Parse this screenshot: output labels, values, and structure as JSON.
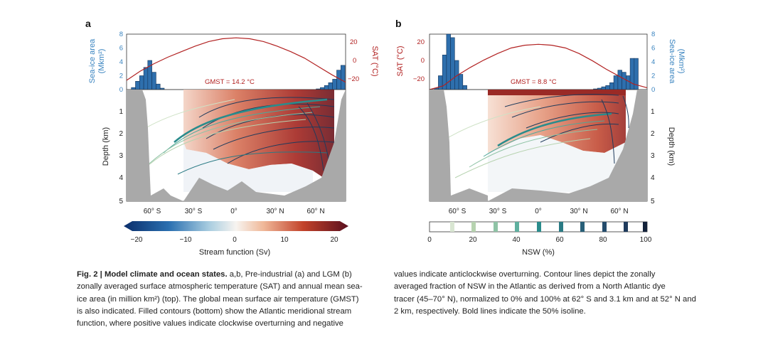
{
  "figure": {
    "caption_label": "Fig. 2 | Model climate and ocean states.",
    "caption_left_bold_ab": "a",
    "caption_left": [
      " a,b, Pre-industrial (a) and LGM (b)",
      "zonally averaged surface atmospheric temperature (SAT) and annual mean sea-",
      "ice area (in million km²) (top). The global mean surface air temperature (GMST)",
      "is also indicated. Filled contours (bottom) show the Atlantic meridional stream",
      "function, where positive values indicate clockwise overturning and negative"
    ],
    "caption_right": [
      "values indicate anticlockwise overturning. Contour lines depict the zonally",
      "averaged fraction of NSW in the Atlantic as derived from a North Atlantic dye",
      "tracer (45–70° N), normalized to 0% and 100% at 62° S and 3.1 km and at 52° N and",
      "2 km, respectively. Bold lines indicate the 50% isoline."
    ]
  },
  "panel_a": {
    "label": "a",
    "seaice_axis_label": [
      "Sea-ice area",
      "(Mkm²)"
    ],
    "seaice_ticks": [
      "8",
      "6",
      "4",
      "2",
      "0"
    ],
    "sat_axis_label": "SAT (°C)",
    "sat_ticks": [
      "20",
      "0",
      "−20"
    ],
    "gmst": "GMST = 14.2 °C",
    "depth_axis_label": "Depth (km)",
    "depth_ticks": [
      "1",
      "2",
      "3",
      "4",
      "5"
    ],
    "lat_ticks": [
      "60° S",
      "30° S",
      "0°",
      "30° N",
      "60° N"
    ]
  },
  "panel_b": {
    "label": "b",
    "seaice_axis_label": [
      "Sea-ice area",
      "(Mkm²)"
    ],
    "seaice_ticks": [
      "8",
      "6",
      "4",
      "2",
      "0"
    ],
    "sat_axis_label": "SAT (°C)",
    "sat_ticks": [
      "20",
      "0",
      "−20"
    ],
    "gmst": "GMST = 8.8 °C",
    "depth_axis_label": "Depth (km)",
    "depth_ticks": [
      "1",
      "2",
      "3",
      "4",
      "5"
    ],
    "lat_ticks": [
      "60° S",
      "30° S",
      "0°",
      "30° N",
      "60° N"
    ]
  },
  "colorbar_stream": {
    "label": "Stream function (Sv)",
    "ticks": [
      "−20",
      "−10",
      "0",
      "10",
      "20"
    ]
  },
  "colorbar_nsw": {
    "label": "NSW (%)",
    "ticks": [
      "0",
      "20",
      "40",
      "60",
      "80",
      "100"
    ]
  },
  "colors": {
    "seaice": "#2e6fad",
    "sat": "#b22222",
    "land": "#a9a9a9",
    "contour_dark": "#1f3b5c",
    "contour_teal": "#2a8c8c",
    "contour_light": "#b7d3b0"
  },
  "chart_data": [
    {
      "type": "bar",
      "panel": "a",
      "series": [
        {
          "name": "Sea-ice area",
          "x": [
            -75,
            -72,
            -69,
            -66,
            -63,
            -60,
            -57,
            -54,
            60,
            63,
            66,
            69,
            72,
            75,
            78
          ],
          "values": [
            0.3,
            1.2,
            2.0,
            3.2,
            4.2,
            2.5,
            0.8,
            0.2,
            0.1,
            0.3,
            0.6,
            1.0,
            1.5,
            2.8,
            3.5
          ]
        }
      ],
      "ylim": [
        0,
        8
      ]
    },
    {
      "type": "line",
      "panel": "a",
      "series": [
        {
          "name": "SAT",
          "x": [
            -80,
            -70,
            -60,
            -50,
            -40,
            -30,
            -20,
            -10,
            0,
            10,
            20,
            30,
            40,
            50,
            60,
            70,
            80
          ],
          "values": [
            -20,
            -10,
            -2,
            5,
            11,
            17,
            22,
            25,
            26,
            25,
            22,
            17,
            11,
            4,
            -5,
            -14,
            -22
          ]
        }
      ],
      "ylim": [
        -30,
        30
      ]
    },
    {
      "type": "bar",
      "panel": "b",
      "series": [
        {
          "name": "Sea-ice area",
          "x": [
            -75,
            -72,
            -69,
            -66,
            -63,
            -60,
            -57,
            -54,
            42,
            45,
            48,
            51,
            54,
            57,
            60,
            63,
            66,
            69,
            72
          ],
          "values": [
            0.2,
            2.0,
            5.0,
            8.0,
            7.5,
            4.2,
            2.2,
            0.6,
            0.1,
            0.2,
            0.4,
            0.6,
            1.0,
            2.0,
            2.8,
            2.5,
            2.0,
            4.5,
            4.5
          ]
        }
      ],
      "ylim": [
        0,
        8
      ]
    },
    {
      "type": "line",
      "panel": "b",
      "series": [
        {
          "name": "SAT",
          "x": [
            -80,
            -70,
            -60,
            -50,
            -40,
            -30,
            -20,
            -10,
            0,
            10,
            20,
            30,
            40,
            50,
            60,
            70,
            80
          ],
          "values": [
            -30,
            -26,
            -15,
            -6,
            2,
            9,
            15,
            18,
            19,
            18,
            15,
            9,
            1,
            -8,
            -16,
            -24,
            -28
          ]
        }
      ],
      "ylim": [
        -30,
        30
      ]
    }
  ]
}
